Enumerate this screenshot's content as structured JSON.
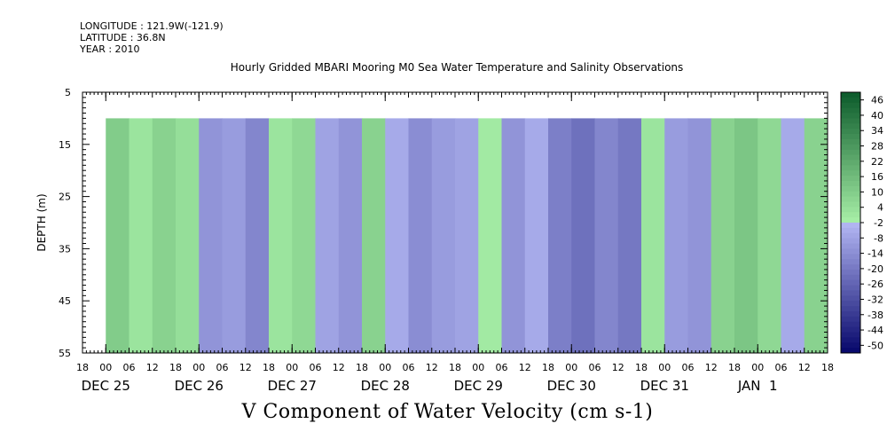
{
  "header": {
    "longitude": "LONGITUDE : 121.9W(-121.9)",
    "latitude": "LATITUDE : 36.8N",
    "year": "YEAR : 2010"
  },
  "chart_data": {
    "type": "heatmap",
    "title": "Hourly Gridded MBARI Mooring M0 Sea Water Temperature and Salinity Observations",
    "bottom_label": "V Component of Water Velocity (cm s-1)",
    "ylabel": "DEPTH (m)",
    "y_ticks": [
      "5",
      "15",
      "25",
      "35",
      "45",
      "55"
    ],
    "y_range": [
      5,
      55
    ],
    "y_inverted": true,
    "data_depth_range": [
      10,
      55
    ],
    "x_hour_ticks": [
      "18",
      "00",
      "06",
      "12",
      "18",
      "00",
      "06",
      "12",
      "18",
      "00",
      "06",
      "12",
      "18",
      "00",
      "06",
      "12",
      "18",
      "00",
      "06",
      "12",
      "18",
      "00",
      "06",
      "12",
      "18",
      "00",
      "06",
      "12",
      "18",
      "00",
      "06",
      "12",
      "18"
    ],
    "x_day_labels": [
      "DEC 25",
      "DEC 26",
      "DEC 27",
      "DEC 28",
      "DEC 29",
      "DEC 30",
      "DEC 31",
      "JAN  1"
    ],
    "x_range_hours_since_dec25_00": [
      -6,
      186
    ],
    "data_start_hour": 0,
    "data_end_hour": 186,
    "colorbar": {
      "labels": [
        "46",
        "40",
        "34",
        "28",
        "22",
        "16",
        "10",
        "4",
        "-2",
        "-8",
        "-14",
        "-20",
        "-26",
        "-32",
        "-38",
        "-44",
        "-50"
      ],
      "min": -50,
      "max": 50
    },
    "columns": [
      {
        "hour": 0,
        "v": 12
      },
      {
        "hour": 6,
        "v": 4
      },
      {
        "hour": 12,
        "v": 10
      },
      {
        "hour": 18,
        "v": 6
      },
      {
        "hour": 24,
        "v": -10
      },
      {
        "hour": 30,
        "v": -8
      },
      {
        "hour": 36,
        "v": -14
      },
      {
        "hour": 42,
        "v": 4
      },
      {
        "hour": 48,
        "v": 8
      },
      {
        "hour": 54,
        "v": -6
      },
      {
        "hour": 60,
        "v": -10
      },
      {
        "hour": 66,
        "v": 10
      },
      {
        "hour": 72,
        "v": -4
      },
      {
        "hour": 78,
        "v": -12
      },
      {
        "hour": 84,
        "v": -8
      },
      {
        "hour": 90,
        "v": -6
      },
      {
        "hour": 96,
        "v": 2
      },
      {
        "hour": 102,
        "v": -10
      },
      {
        "hour": 108,
        "v": -4
      },
      {
        "hour": 114,
        "v": -16
      },
      {
        "hour": 120,
        "v": -20
      },
      {
        "hour": 126,
        "v": -14
      },
      {
        "hour": 132,
        "v": -18
      },
      {
        "hour": 138,
        "v": 4
      },
      {
        "hour": 144,
        "v": -8
      },
      {
        "hour": 150,
        "v": -10
      },
      {
        "hour": 156,
        "v": 10
      },
      {
        "hour": 162,
        "v": 14
      },
      {
        "hour": 168,
        "v": 8
      },
      {
        "hour": 174,
        "v": -4
      },
      {
        "hour": 180,
        "v": 10
      },
      {
        "hour": 186,
        "v": 12
      }
    ],
    "colors": {
      "pos_dark": "#0b5a2a",
      "pos_light": "#a8f0a8",
      "neg_light": "#b4b8f4",
      "neg_dark": "#06066a"
    },
    "grid": false
  }
}
